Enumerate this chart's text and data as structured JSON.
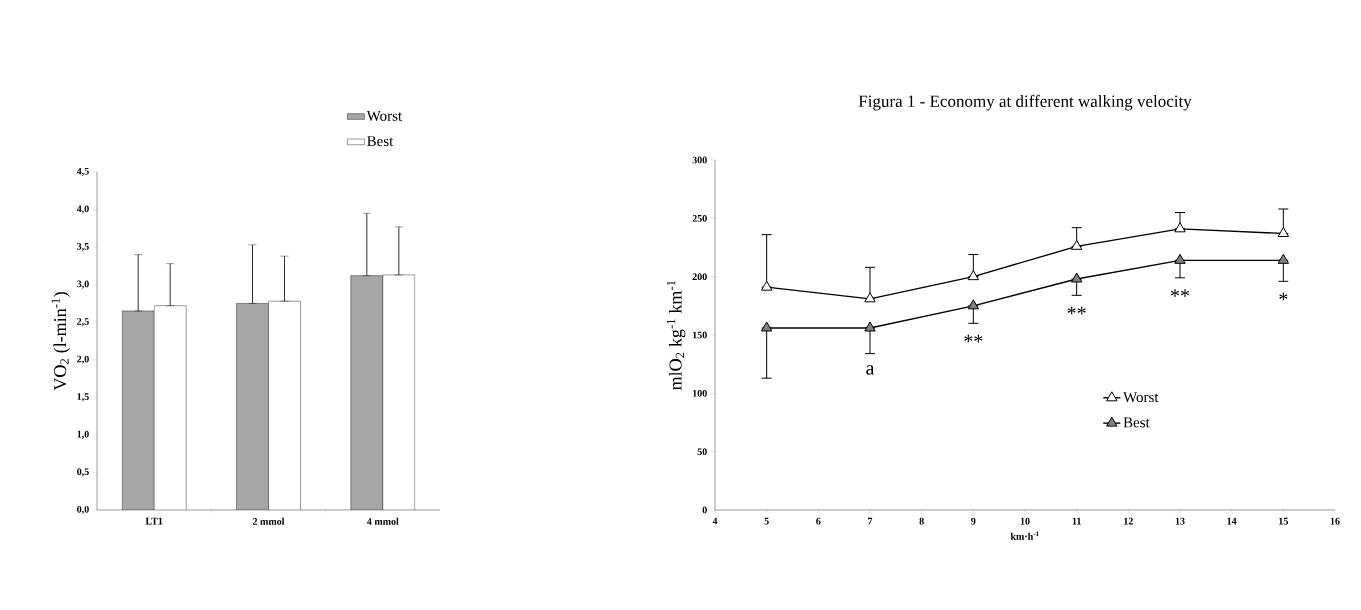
{
  "chart_data": [
    {
      "type": "bar",
      "ylabel": "VO$_{2}$ (l-min$^{-1}$)",
      "categories": [
        "LT1",
        "2 mmol",
        "4 mmol"
      ],
      "series": [
        {
          "name": "Worst",
          "color": "#a6a6a6",
          "values": [
            2.65,
            2.75,
            3.12
          ],
          "errors": [
            [
              2.65,
              3.4
            ],
            [
              2.75,
              3.53
            ],
            [
              3.12,
              3.95
            ]
          ]
        },
        {
          "name": "Best",
          "color": "#ffffff",
          "values": [
            2.72,
            2.78,
            3.13
          ],
          "errors": [
            [
              2.72,
              3.28
            ],
            [
              2.78,
              3.38
            ],
            [
              3.13,
              3.77
            ]
          ]
        }
      ],
      "ylim": [
        0,
        4.5
      ],
      "yticks": [
        {
          "value": 0,
          "label": "0,0"
        },
        {
          "value": 0.5,
          "label": "0,5"
        },
        {
          "value": 1,
          "label": "1,0"
        },
        {
          "value": 1.5,
          "label": "1,5"
        },
        {
          "value": 2,
          "label": "2,0"
        },
        {
          "value": 2.5,
          "label": "2,5"
        },
        {
          "value": 3,
          "label": "3,0"
        },
        {
          "value": 3.5,
          "label": "3,5"
        },
        {
          "value": 4,
          "label": "4,0"
        },
        {
          "value": 4.5,
          "label": "4,5"
        }
      ],
      "legend": "top right"
    },
    {
      "type": "line",
      "title": "Figura 1 - Economy at different walking velocity",
      "xlabel": "km·h$^{-1}$",
      "ylabel": "mlO$_{2}$ kg$^{-1}$ km$^{-1}$",
      "x": [
        5,
        7,
        9,
        11,
        13,
        15
      ],
      "series": [
        {
          "name": "Worst",
          "color": "#ffffff",
          "values": [
            191,
            181,
            200,
            226,
            241,
            237
          ],
          "errors": [
            [
              191,
              236
            ],
            [
              181,
              208
            ],
            [
              200,
              219
            ],
            [
              226,
              242
            ],
            [
              241,
              255
            ],
            [
              237,
              258
            ]
          ]
        },
        {
          "name": "Best",
          "color": "#808080",
          "values": [
            156,
            156,
            175,
            198,
            214,
            214
          ],
          "errors": [
            [
              113,
              156
            ],
            [
              134,
              156
            ],
            [
              160,
              175
            ],
            [
              184,
              198
            ],
            [
              199,
              214
            ],
            [
              196,
              214
            ]
          ]
        }
      ],
      "xlim": [
        4,
        16
      ],
      "xticks": [
        4,
        5,
        6,
        7,
        8,
        9,
        10,
        11,
        12,
        13,
        14,
        15,
        16
      ],
      "ylim": [
        0,
        300
      ],
      "yticks": [
        0,
        50,
        100,
        150,
        200,
        250,
        300
      ],
      "marker": "triangle",
      "line_style": "solid",
      "legend": "right",
      "annotations": [
        "a",
        "**",
        "**",
        "**",
        "*"
      ]
    }
  ]
}
